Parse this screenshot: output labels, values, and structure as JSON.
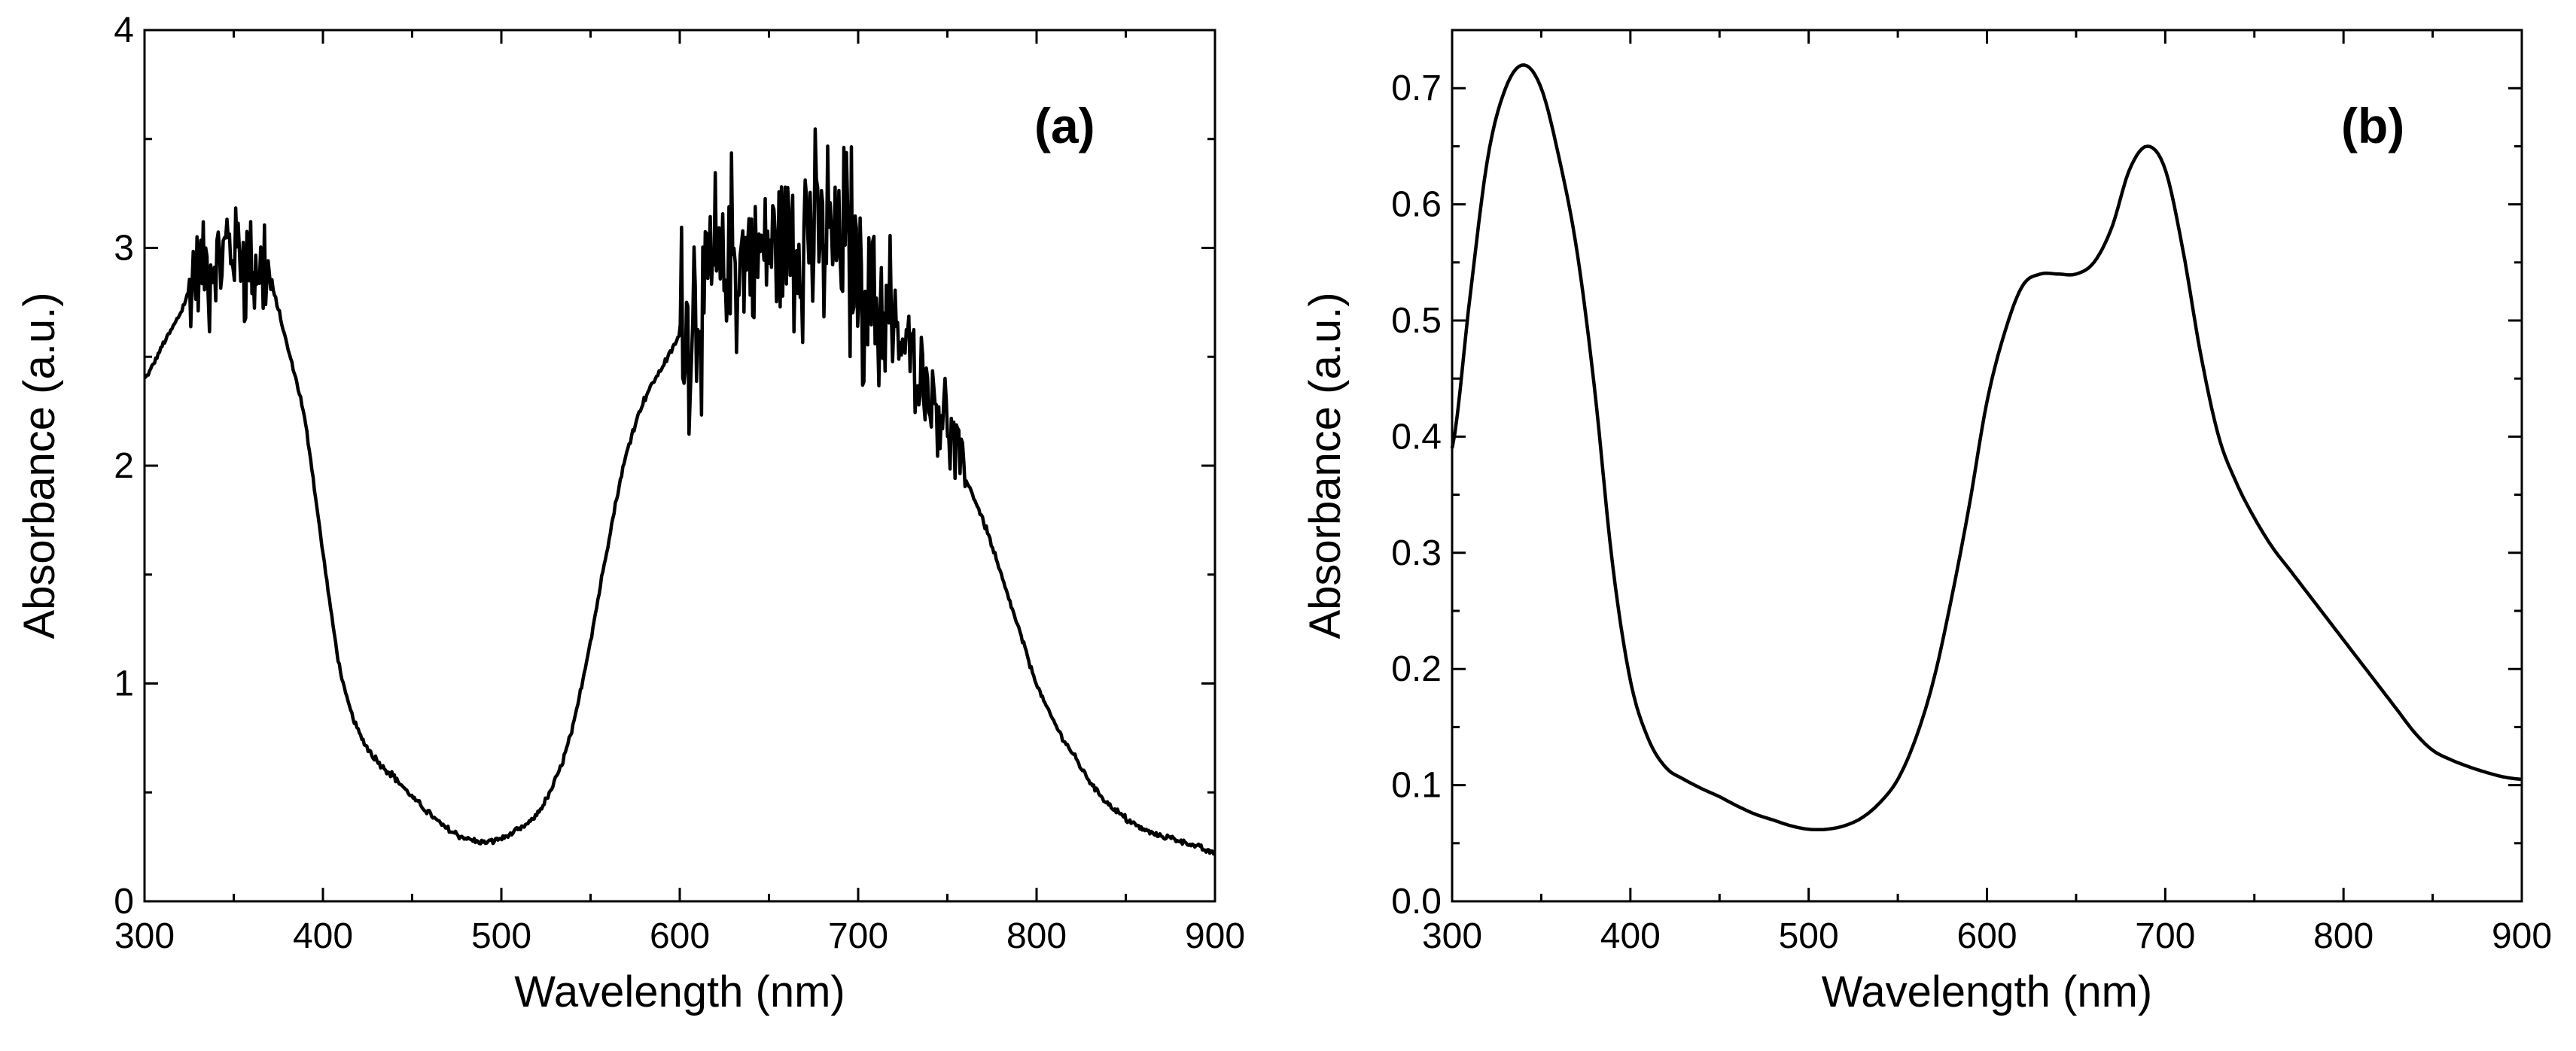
{
  "chart_data": [
    {
      "type": "line",
      "panel_label": "(a)",
      "xlabel": "Wavelength (nm)",
      "ylabel": "Absorbance (a.u.)",
      "xlim": [
        300,
        900
      ],
      "ylim": [
        0,
        4
      ],
      "xticks": [
        300,
        400,
        500,
        600,
        700,
        800,
        900
      ],
      "xtick_labels": [
        "300",
        "400",
        "500",
        "600",
        "700",
        "800",
        "900"
      ],
      "yticks": [
        0,
        1,
        2,
        3,
        4
      ],
      "ytick_labels": [
        "0",
        "1",
        "2",
        "3",
        "4"
      ],
      "grid": false,
      "series": [
        {
          "name": "spectrum-a",
          "noisy": true,
          "noise_regions": [
            {
              "from": 325,
              "to": 372,
              "amplitude": 0.28
            },
            {
              "from": 600,
              "to": 720,
              "amplitude": 0.4
            },
            {
              "from": 720,
              "to": 760,
              "amplitude": 0.18
            }
          ],
          "x": [
            300,
            310,
            320,
            330,
            340,
            350,
            360,
            370,
            380,
            390,
            400,
            410,
            420,
            430,
            440,
            450,
            460,
            470,
            480,
            490,
            500,
            510,
            520,
            530,
            540,
            550,
            560,
            570,
            580,
            590,
            600,
            610,
            620,
            630,
            640,
            650,
            660,
            670,
            680,
            690,
            700,
            710,
            720,
            730,
            740,
            750,
            760,
            770,
            780,
            790,
            800,
            810,
            820,
            830,
            840,
            850,
            860,
            870,
            880,
            890,
            900
          ],
          "y": [
            2.4,
            2.55,
            2.7,
            2.9,
            2.95,
            3.0,
            2.95,
            2.85,
            2.55,
            2.2,
            1.6,
            1.05,
            0.78,
            0.65,
            0.57,
            0.48,
            0.4,
            0.33,
            0.29,
            0.27,
            0.29,
            0.33,
            0.4,
            0.55,
            0.8,
            1.2,
            1.65,
            2.05,
            2.3,
            2.45,
            2.6,
            2.75,
            2.85,
            2.95,
            2.95,
            3.0,
            3.05,
            3.05,
            3.05,
            3.0,
            2.9,
            2.75,
            2.6,
            2.5,
            2.35,
            2.2,
            1.95,
            1.75,
            1.5,
            1.25,
            1.0,
            0.82,
            0.68,
            0.55,
            0.45,
            0.38,
            0.33,
            0.3,
            0.28,
            0.25,
            0.22
          ]
        }
      ]
    },
    {
      "type": "line",
      "panel_label": "(b)",
      "xlabel": "Wavelength (nm)",
      "ylabel": "Absorbance (a.u.)",
      "xlim": [
        300,
        900
      ],
      "ylim": [
        0,
        0.75
      ],
      "xticks": [
        300,
        400,
        500,
        600,
        700,
        800,
        900
      ],
      "xtick_labels": [
        "300",
        "400",
        "500",
        "600",
        "700",
        "800",
        "900"
      ],
      "yticks": [
        0.0,
        0.1,
        0.2,
        0.3,
        0.4,
        0.5,
        0.6,
        0.7
      ],
      "ytick_labels": [
        "0.0",
        "0.1",
        "0.2",
        "0.3",
        "0.4",
        "0.5",
        "0.6",
        "0.7"
      ],
      "grid": false,
      "series": [
        {
          "name": "spectrum-b",
          "noisy": false,
          "x": [
            300,
            310,
            320,
            330,
            340,
            350,
            360,
            370,
            380,
            390,
            400,
            410,
            420,
            430,
            440,
            450,
            460,
            470,
            480,
            490,
            500,
            510,
            520,
            530,
            540,
            550,
            560,
            570,
            580,
            590,
            600,
            610,
            620,
            630,
            640,
            650,
            660,
            670,
            680,
            690,
            700,
            710,
            720,
            730,
            740,
            750,
            760,
            770,
            780,
            790,
            800,
            810,
            820,
            830,
            840,
            850,
            860,
            870,
            880,
            890,
            900
          ],
          "y": [
            0.39,
            0.52,
            0.64,
            0.7,
            0.72,
            0.7,
            0.64,
            0.56,
            0.44,
            0.29,
            0.19,
            0.14,
            0.115,
            0.105,
            0.097,
            0.09,
            0.082,
            0.075,
            0.07,
            0.065,
            0.062,
            0.062,
            0.065,
            0.072,
            0.085,
            0.105,
            0.14,
            0.19,
            0.26,
            0.34,
            0.43,
            0.49,
            0.53,
            0.54,
            0.54,
            0.54,
            0.55,
            0.58,
            0.63,
            0.65,
            0.63,
            0.56,
            0.47,
            0.4,
            0.36,
            0.33,
            0.305,
            0.285,
            0.265,
            0.245,
            0.225,
            0.205,
            0.185,
            0.165,
            0.145,
            0.13,
            0.122,
            0.116,
            0.111,
            0.107,
            0.105
          ]
        }
      ]
    }
  ]
}
